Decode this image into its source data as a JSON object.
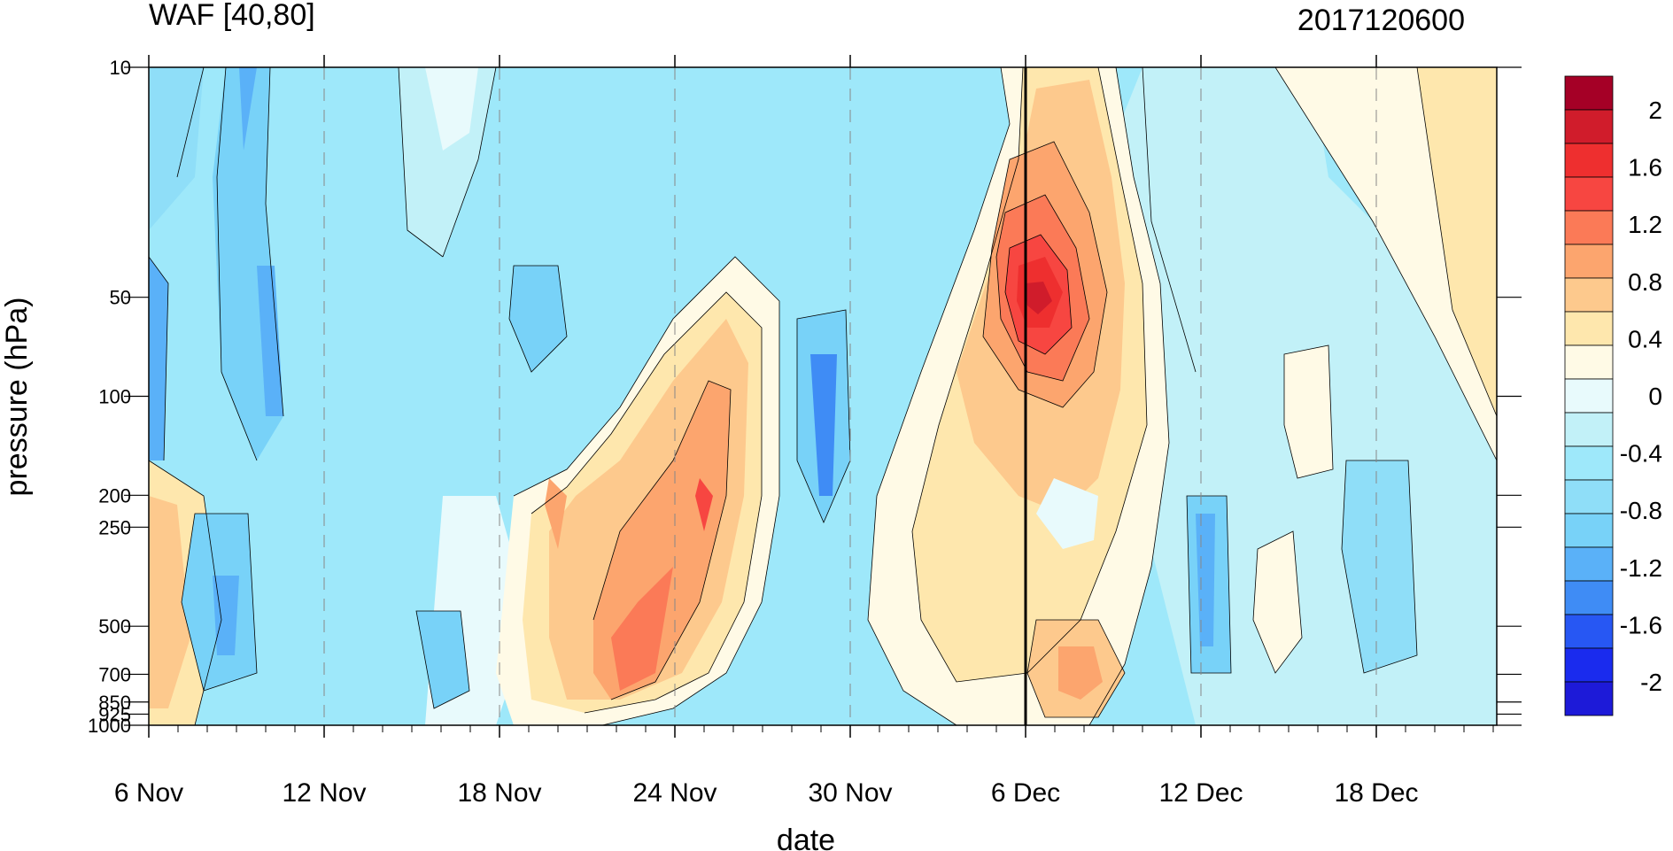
{
  "chart_data": {
    "type": "heatmap",
    "title": "WAF [40,80]",
    "subtitle": "2017120600",
    "xlabel": "date",
    "ylabel": "pressure (hPa)",
    "x_ticks": [
      "6 Nov",
      "12 Nov",
      "18 Nov",
      "24 Nov",
      "30 Nov",
      "6 Dec",
      "12 Dec",
      "18 Dec"
    ],
    "y_ticks": [
      "10",
      "50",
      "100",
      "200",
      "250",
      "500",
      "700",
      "850",
      "925",
      "1000"
    ],
    "ylim": [
      1000,
      10
    ],
    "y_scale": "log",
    "colorbar": {
      "labels": [
        "2",
        "1.6",
        "1.2",
        "0.8",
        "0.4",
        "0",
        "-0.4",
        "-0.8",
        "-1.2",
        "-1.6",
        "-2"
      ],
      "colors": [
        "#a50026",
        "#d01c2b",
        "#ee2f2f",
        "#f74641",
        "#fb7a57",
        "#fca56e",
        "#fdc98d",
        "#fee7ad",
        "#fffae6",
        "#e8fafc",
        "#c2f1f8",
        "#9ee8fa",
        "#8fdef8",
        "#78d2f8",
        "#5ab1f8",
        "#3f8cf5",
        "#2757f3",
        "#1a2bee",
        "#1d1ad8"
      ]
    },
    "highlight_date": "6 Dec"
  }
}
